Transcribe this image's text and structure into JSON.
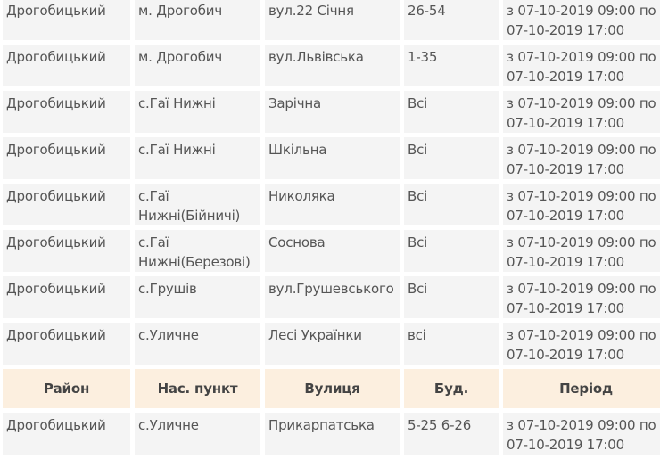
{
  "headers": [
    "Район",
    "Нас. пункт",
    "Вулиця",
    "Буд.",
    "Період"
  ],
  "rows_before": [
    [
      "Дрогобицький",
      "м. Дрогобич",
      "вул.22 Січня",
      "26-54",
      "з 07-10-2019 09:00 по 07-10-2019 17:00"
    ],
    [
      "Дрогобицький",
      "м. Дрогобич",
      "вул.Львівська",
      "1-35",
      "з 07-10-2019 09:00 по 07-10-2019 17:00"
    ],
    [
      "Дрогобицький",
      "с.Гаї Нижні",
      "Зарічна",
      "Всі",
      "з 07-10-2019 09:00 по 07-10-2019 17:00"
    ],
    [
      "Дрогобицький",
      "с.Гаї Нижні",
      "Шкільна",
      "Всі",
      "з 07-10-2019 09:00 по 07-10-2019 17:00"
    ],
    [
      "Дрогобицький",
      "с.Гаї Нижні(Бійничі)",
      "Николяка",
      "Всі",
      "з 07-10-2019 09:00 по 07-10-2019 17:00"
    ],
    [
      "Дрогобицький",
      "с.Гаї Нижні(Березові)",
      "Соснова",
      "Всі",
      "з 07-10-2019 09:00 по 07-10-2019 17:00"
    ],
    [
      "Дрогобицький",
      "с.Грушів",
      "вул.Грушевського",
      "Всі",
      "з 07-10-2019 09:00 по 07-10-2019 17:00"
    ],
    [
      "Дрогобицький",
      "с.Уличне",
      "Лесі Українки",
      "всі",
      "з 07-10-2019 09:00 по 07-10-2019 17:00"
    ]
  ],
  "rows_after": [
    [
      "Дрогобицький",
      "с.Уличне",
      "Прикарпатська",
      "5-25 6-26",
      "з 07-10-2019 09:00 по 07-10-2019 17:00"
    ]
  ]
}
